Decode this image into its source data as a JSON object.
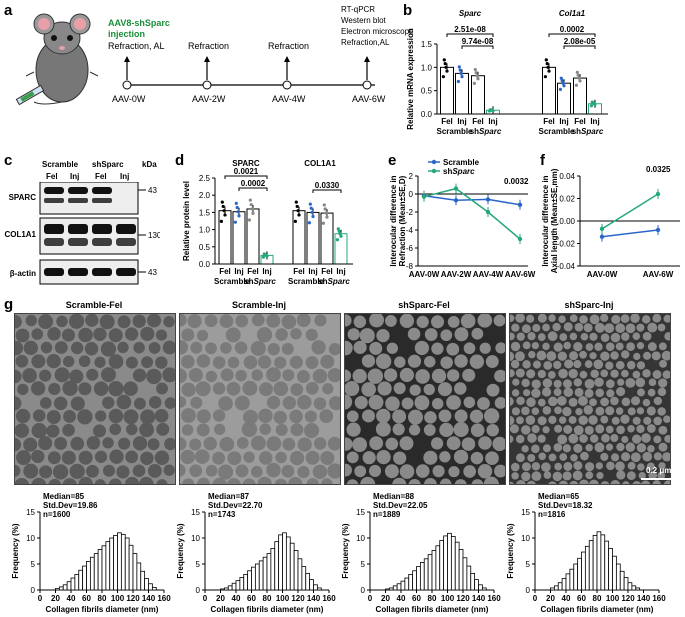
{
  "panels": {
    "a": "a",
    "b": "b",
    "c": "c",
    "d": "d",
    "e": "e",
    "f": "f",
    "g": "g"
  },
  "panel_a": {
    "aav_label": "AAV8-shSparc",
    "injection": "injection",
    "step0": "Refraction, AL",
    "step2": "Refraction",
    "step4": "Refraction",
    "step6": [
      "RT-qPCR",
      "Western blot",
      "Electron microscope",
      "Refraction,AL"
    ],
    "timepoints": [
      "AAV-0W",
      "AAV-2W",
      "AAV-4W",
      "AAV-6W"
    ]
  },
  "panel_c": {
    "groups": [
      "Scramble",
      "shSparc"
    ],
    "lanes": [
      "Fel",
      "Inj",
      "Fel",
      "Inj"
    ],
    "kda": "kDa",
    "bands": [
      {
        "name": "SPARC",
        "kda": "43"
      },
      {
        "name": "COL1A1",
        "kda": "130"
      },
      {
        "name": "β-actin",
        "kda": "43"
      }
    ]
  },
  "chart_data": [
    {
      "panel": "b",
      "type": "bar",
      "ylabel": "Relative mRNA expression",
      "ylim": [
        0,
        1.5
      ],
      "yticks": [
        "0.0",
        "0.5",
        "1.0",
        "1.5"
      ],
      "genes": [
        "Sparc",
        "Col1a1"
      ],
      "categories": [
        "Fel",
        "Inj",
        "Fel",
        "Inj",
        "Fel",
        "Inj",
        "Fel",
        "Inj"
      ],
      "groups": [
        "Scramble",
        "shSparc",
        "Scramble",
        "shSparc"
      ],
      "values": [
        1.0,
        0.87,
        0.82,
        0.08,
        1.0,
        0.66,
        0.77,
        0.22
      ],
      "pvalues": [
        "2.51e-08",
        "9.74e-08",
        "0.0002",
        "2.08e-05"
      ]
    },
    {
      "panel": "d",
      "type": "bar",
      "ylabel": "Relative protein level",
      "ylim": [
        0,
        2.5
      ],
      "yticks": [
        "0.0",
        "0.5",
        "1.0",
        "1.5",
        "2.0",
        "2.5"
      ],
      "proteins": [
        "SPARC",
        "COL1A1"
      ],
      "categories": [
        "Fel",
        "Inj",
        "Fel",
        "Inj",
        "Fel",
        "Inj",
        "Fel",
        "Inj"
      ],
      "groups": [
        "Scramble",
        "shSparc",
        "Scramble",
        "shSparc"
      ],
      "values": [
        1.55,
        1.52,
        1.6,
        0.25,
        1.55,
        1.5,
        1.48,
        0.88
      ],
      "pvalues": [
        "0.0021",
        "0.0002",
        "0.0330"
      ]
    },
    {
      "panel": "e",
      "type": "line",
      "ylabel": "Interocular difference in Refraction (Mean±SE,D)",
      "x": [
        "AAV-0W",
        "AAV-2W",
        "AAV-4W",
        "AAV-6W"
      ],
      "ylim": [
        -8,
        2
      ],
      "yticks": [
        "2",
        "0",
        "-2",
        "-4",
        "-6",
        "-8"
      ],
      "series": [
        {
          "name": "Scramble",
          "values": [
            -0.2,
            -0.7,
            -0.6,
            -1.2
          ],
          "color": "#2a66c9"
        },
        {
          "name": "shSparc",
          "values": [
            -0.3,
            0.6,
            -2.0,
            -5.0
          ],
          "color": "#25a87a"
        }
      ],
      "pvalue": "0.0032"
    },
    {
      "panel": "f",
      "type": "line",
      "ylabel": "Interocular difference in Axial length (Mean±SE,mm)",
      "x": [
        "AAV-0W",
        "AAV-6W"
      ],
      "ylim": [
        -0.04,
        0.04
      ],
      "yticks": [
        "0.04",
        "0.02",
        "0.00",
        "-0.02",
        "-0.04"
      ],
      "series": [
        {
          "name": "Scramble",
          "values": [
            -0.014,
            -0.008
          ],
          "color": "#2a66c9"
        },
        {
          "name": "shSparc",
          "values": [
            -0.007,
            0.024
          ],
          "color": "#25a87a"
        }
      ],
      "pvalue": "0.0325"
    },
    {
      "panel": "g",
      "type": "bar",
      "xlabel": "Collagen fibrils diameter (nm)",
      "ylabel": "Frequency (%)",
      "ylim": [
        0,
        15
      ],
      "xticks": [
        "0",
        "20",
        "40",
        "60",
        "80",
        "100",
        "120",
        "140",
        "160"
      ],
      "yticks": [
        "0",
        "5",
        "10",
        "15"
      ],
      "histograms": [
        {
          "title": "Scramble-Fel",
          "median": "Median=85",
          "std": "Std.Dev=19.86",
          "n": "n=1600",
          "values": [
            0.3,
            0.6,
            1,
            1.6,
            2.3,
            3,
            3.8,
            4.6,
            5.5,
            6.3,
            7,
            7.8,
            8.5,
            9.3,
            10,
            10.5,
            11,
            10.7,
            10,
            8.6,
            7,
            5.2,
            3.6,
            2.2,
            1.2,
            0.5
          ]
        },
        {
          "title": "Scramble-Inj",
          "median": "Median=87",
          "std": "Std.Dev=22.70",
          "n": "n=1743",
          "values": [
            0.2,
            0.4,
            0.8,
            1.3,
            1.8,
            2.4,
            3,
            3.7,
            4.4,
            5,
            5.6,
            6.3,
            7,
            8,
            9.3,
            10.6,
            11,
            10.2,
            9,
            7.6,
            6,
            4.5,
            3.2,
            2,
            1,
            0.4
          ]
        },
        {
          "title": "shSparc-Fel",
          "median": "Median=88",
          "std": "Std.Dev=22.05",
          "n": "n=1889",
          "values": [
            0.2,
            0.4,
            0.8,
            1.2,
            1.7,
            2.3,
            3,
            3.7,
            4.5,
            5.3,
            6,
            6.8,
            7.6,
            8.5,
            9.5,
            10.4,
            10.9,
            10.3,
            9.2,
            7.8,
            6.2,
            4.6,
            3.2,
            2,
            1,
            0.4
          ]
        },
        {
          "title": "shSparc-Inj",
          "median": "Median=65",
          "std": "Std.Dev=18.32",
          "n": "n=1816",
          "values": [
            0.4,
            0.8,
            1.4,
            2.2,
            3.1,
            4,
            5,
            6.1,
            7.3,
            8.4,
            9.5,
            10.5,
            11.2,
            10.6,
            9.4,
            8,
            6.5,
            5,
            3.6,
            2.4,
            1.4,
            0.8,
            0.4
          ]
        }
      ]
    }
  ],
  "panel_g_scale": "0.2 μm"
}
